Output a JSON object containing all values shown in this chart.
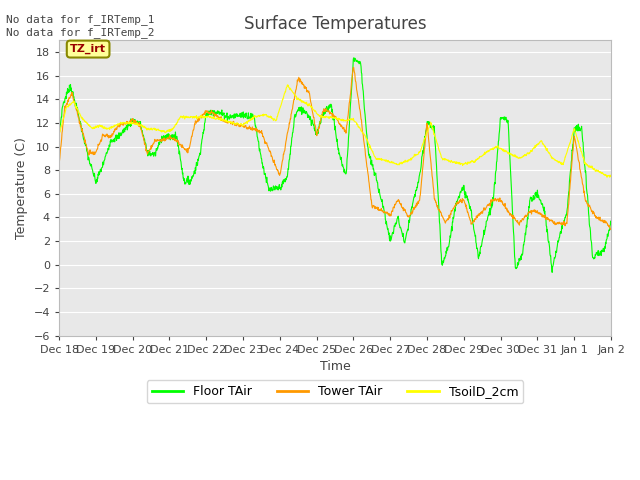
{
  "title": "Surface Temperatures",
  "xlabel": "Time",
  "ylabel": "Temperature (C)",
  "ylim": [
    -6,
    19
  ],
  "yticks": [
    -6,
    -4,
    -2,
    0,
    2,
    4,
    6,
    8,
    10,
    12,
    14,
    16,
    18
  ],
  "annotation_text": "No data for f_IRTemp_1\nNo data for f_IRTemp_2",
  "cursor_label": "TZ_irt",
  "cursor_label_color": "#990000",
  "cursor_label_bg": "#ffff99",
  "figure_bg": "#ffffff",
  "plot_bg": "#e8e8e8",
  "grid_color": "#ffffff",
  "line_colors": {
    "floor": "#00ff00",
    "tower": "#ff9900",
    "soil": "#ffff00"
  },
  "legend_labels": [
    "Floor TAir",
    "Tower TAir",
    "TsoilD_2cm"
  ],
  "x_tick_labels": [
    "Dec 18",
    "Dec 19",
    "Dec 20",
    "Dec 21",
    "Dec 22",
    "Dec 23",
    "Dec 24",
    "Dec 25",
    "Dec 26",
    "Dec 27",
    "Dec 28",
    "Dec 29",
    "Dec 30",
    "Dec 31",
    "Jan 1",
    "Jan 2"
  ],
  "num_days": 15
}
